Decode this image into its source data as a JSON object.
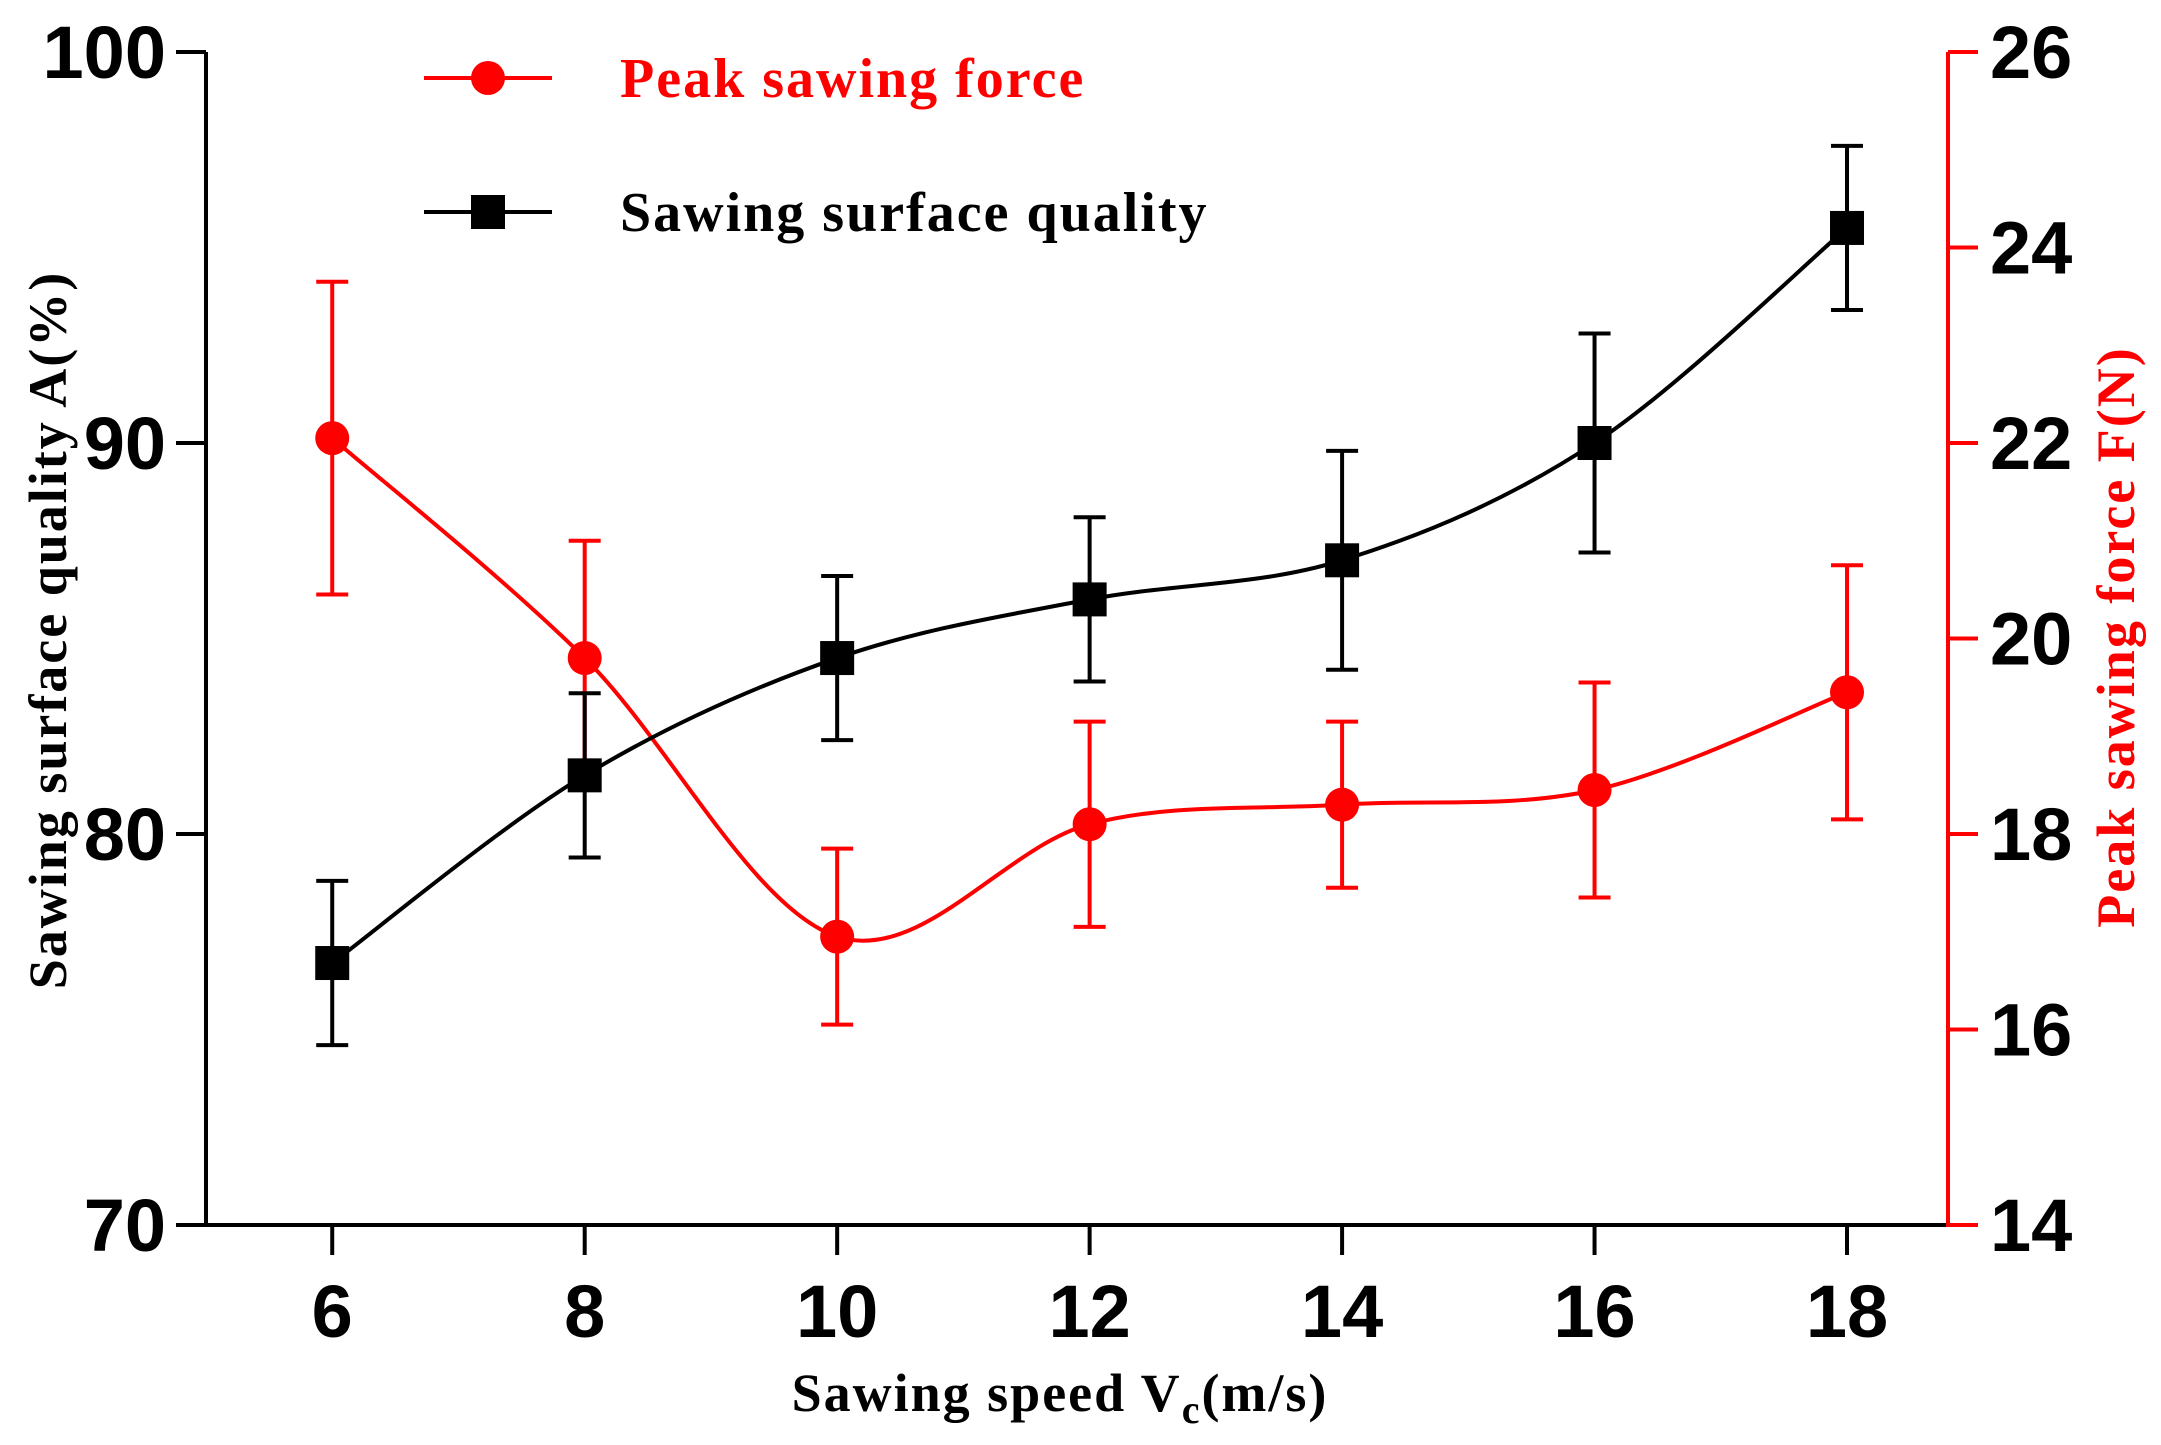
{
  "chart_data": {
    "type": "line",
    "x_label_main": "Sawing speed V",
    "x_label_sub": "c",
    "x_label_unit": "(m/s)",
    "left_y_label": "Sawing surface quality A(%)",
    "right_y_label": "Peak sawing force F(N)",
    "x": [
      6,
      8,
      10,
      12,
      14,
      16,
      18
    ],
    "x_ticks": [
      "6",
      "8",
      "10",
      "12",
      "14",
      "16",
      "18"
    ],
    "xlim": [
      5,
      18.8
    ],
    "left_ylim": [
      70,
      100
    ],
    "left_y_ticks": [
      "70",
      "80",
      "90",
      "100"
    ],
    "right_ylim": [
      14,
      26
    ],
    "right_y_ticks": [
      "14",
      "16",
      "18",
      "20",
      "22",
      "24",
      "26"
    ],
    "series": [
      {
        "name": "Peak sawing force",
        "axis": "right",
        "color": "#ff0000",
        "marker": "circle",
        "values": [
          22.05,
          19.8,
          16.95,
          18.1,
          18.3,
          18.45,
          19.45
        ],
        "error": [
          1.6,
          1.2,
          0.9,
          1.05,
          0.85,
          1.1,
          1.3
        ]
      },
      {
        "name": "Sawing surface quality",
        "axis": "left",
        "color": "#000000",
        "marker": "square",
        "values": [
          76.7,
          81.5,
          84.5,
          86.0,
          87.0,
          90.0,
          95.5
        ],
        "error": [
          2.1,
          2.1,
          2.1,
          2.1,
          2.8,
          2.8,
          2.1
        ]
      }
    ],
    "legend_position": "top-center",
    "grid": false
  }
}
